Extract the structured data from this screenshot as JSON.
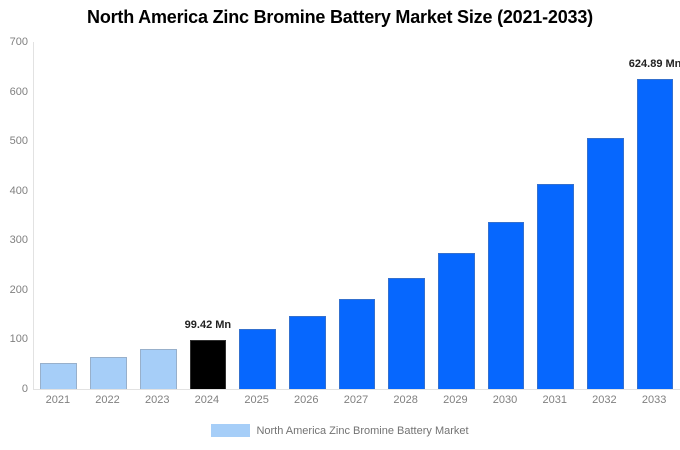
{
  "chart_data": {
    "type": "bar",
    "title": "North America Zinc Bromine Battery Market Size (2021-2033)",
    "xlabel": "",
    "ylabel": "",
    "unit": "Mn",
    "categories": [
      "2021",
      "2022",
      "2023",
      "2024",
      "2025",
      "2026",
      "2027",
      "2028",
      "2029",
      "2030",
      "2031",
      "2032",
      "2033"
    ],
    "values": [
      53,
      65,
      80,
      99.42,
      121,
      148,
      181,
      223,
      274,
      336,
      413,
      507,
      624.89
    ],
    "bar_roles": [
      "historical",
      "historical",
      "historical",
      "base_year",
      "forecast",
      "forecast",
      "forecast",
      "forecast",
      "forecast",
      "forecast",
      "forecast",
      "forecast",
      "forecast"
    ],
    "colors": {
      "historical": "#A6CEF8",
      "base_year": "#000000",
      "forecast": "#0667FE"
    },
    "data_labels": [
      {
        "category": "2024",
        "text": "99.42 Mn"
      },
      {
        "category": "2033",
        "text": "624.89 Mn"
      }
    ],
    "ylim": [
      0,
      700
    ],
    "yticks": [
      "0",
      "100",
      "200",
      "300",
      "400",
      "500",
      "600",
      "700"
    ],
    "grid": "off",
    "legend": {
      "position": "bottom",
      "label": "North America Zinc Bromine Battery Market",
      "swatch_color": "#A6CEF8"
    },
    "axis_text_color": "#808080"
  }
}
